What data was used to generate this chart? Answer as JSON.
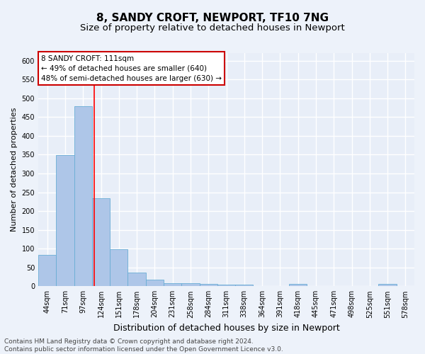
{
  "title": "8, SANDY CROFT, NEWPORT, TF10 7NG",
  "subtitle": "Size of property relative to detached houses in Newport",
  "xlabel": "Distribution of detached houses by size in Newport",
  "ylabel": "Number of detached properties",
  "categories": [
    "44sqm",
    "71sqm",
    "97sqm",
    "124sqm",
    "151sqm",
    "178sqm",
    "204sqm",
    "231sqm",
    "258sqm",
    "284sqm",
    "311sqm",
    "338sqm",
    "364sqm",
    "391sqm",
    "418sqm",
    "445sqm",
    "471sqm",
    "498sqm",
    "525sqm",
    "551sqm",
    "578sqm"
  ],
  "values": [
    83,
    348,
    478,
    234,
    99,
    37,
    18,
    8,
    8,
    7,
    5,
    5,
    0,
    0,
    6,
    0,
    0,
    0,
    0,
    6,
    0
  ],
  "bar_color": "#aec6e8",
  "bar_edge_color": "#6aadd5",
  "background_color": "#e8eef8",
  "grid_color": "#ffffff",
  "red_line_x": 2.64,
  "annotation_line1": "8 SANDY CROFT: 111sqm",
  "annotation_line2": "← 49% of detached houses are smaller (640)",
  "annotation_line3": "48% of semi-detached houses are larger (630) →",
  "annotation_box_edgecolor": "#cc0000",
  "ylim": [
    0,
    620
  ],
  "yticks": [
    0,
    50,
    100,
    150,
    200,
    250,
    300,
    350,
    400,
    450,
    500,
    550,
    600
  ],
  "footer_text": "Contains HM Land Registry data © Crown copyright and database right 2024.\nContains public sector information licensed under the Open Government Licence v3.0.",
  "title_fontsize": 11,
  "subtitle_fontsize": 9.5,
  "xlabel_fontsize": 9,
  "ylabel_fontsize": 8,
  "tick_fontsize": 7,
  "annotation_fontsize": 7.5,
  "footer_fontsize": 6.5,
  "fig_bg_color": "#edf2fa"
}
